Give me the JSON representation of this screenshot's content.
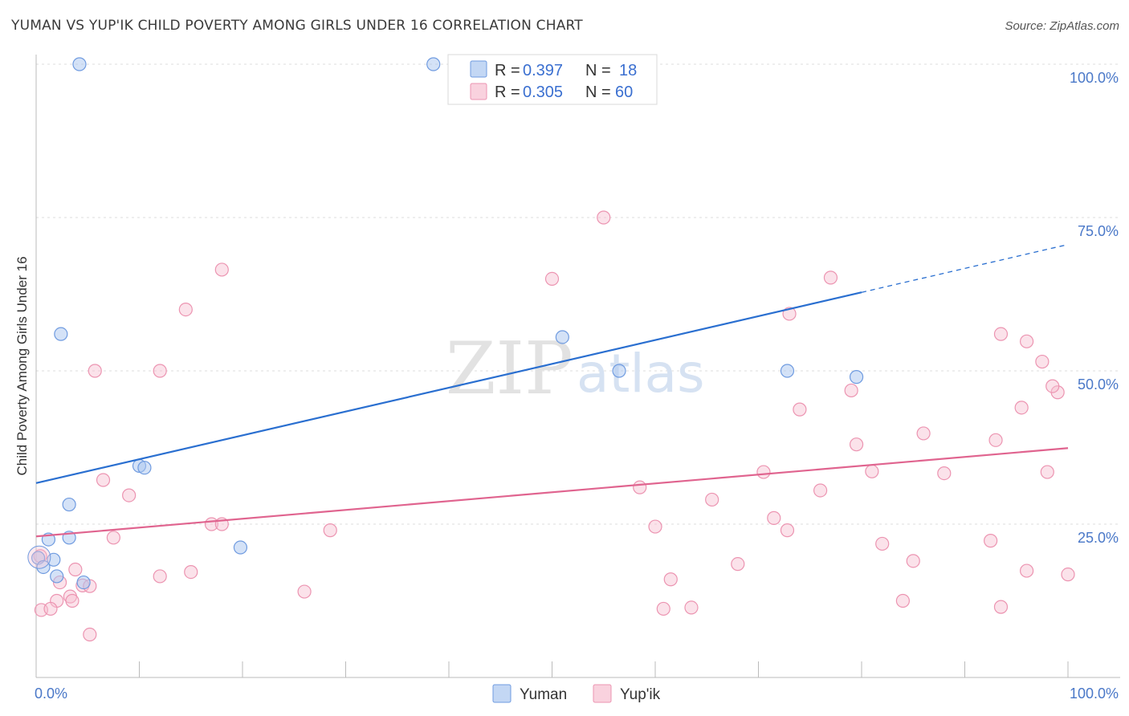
{
  "title": "YUMAN VS YUP'IK CHILD POVERTY AMONG GIRLS UNDER 16 CORRELATION CHART",
  "source": "Source: ZipAtlas.com",
  "watermark": {
    "zip": "ZIP",
    "atlas": "atlas"
  },
  "colors": {
    "yuman_fill": "#a9c6ef",
    "yuman_stroke": "#6f9be0",
    "yuman_line": "#2a6fd0",
    "yupik_fill": "#f6bfd0",
    "yupik_stroke": "#ec94b1",
    "yupik_line": "#e0648f",
    "grid": "#dddddd",
    "tick_text": "#4a78c8"
  },
  "legend": {
    "yuman": {
      "r_label": "R = ",
      "r_value": "0.397",
      "n_label": "N = ",
      "n_value": "18"
    },
    "yupik": {
      "r_label": "R = ",
      "r_value": "0.305",
      "n_label": "N = ",
      "n_value": "60"
    }
  },
  "bottom_legend": {
    "yuman": "Yuman",
    "yupik": "Yup'ik"
  },
  "chart_data": {
    "type": "scatter",
    "title": "YUMAN VS YUP'IK CHILD POVERTY AMONG GIRLS UNDER 16 CORRELATION CHART",
    "xlabel": "",
    "ylabel": "Child Poverty Among Girls Under 16",
    "xlim": [
      0,
      100
    ],
    "ylim": [
      0,
      100
    ],
    "x_tick_labels": [
      "0.0%",
      "100.0%"
    ],
    "y_tick_labels": [
      "100.0%",
      "75.0%",
      "50.0%",
      "25.0%"
    ],
    "y_tick_values": [
      100,
      75,
      50,
      25
    ],
    "grid": true,
    "series": [
      {
        "name": "Yuman",
        "R": 0.397,
        "N": 18,
        "trend": {
          "x0": 0,
          "y0": 31.7,
          "x1": 80,
          "y1": 62.8,
          "dash_x1": 100,
          "dash_y1": 70.6
        },
        "points": [
          [
            4.2,
            100
          ],
          [
            38.5,
            100
          ],
          [
            2.4,
            56.0
          ],
          [
            51.0,
            55.5
          ],
          [
            56.5,
            50.0
          ],
          [
            72.8,
            50.0
          ],
          [
            79.5,
            49.0
          ],
          [
            10.0,
            34.5
          ],
          [
            10.5,
            34.2
          ],
          [
            3.2,
            28.2
          ],
          [
            19.8,
            21.2
          ],
          [
            1.2,
            22.5
          ],
          [
            3.2,
            22.8
          ],
          [
            1.7,
            19.2
          ],
          [
            0.2,
            19.5
          ],
          [
            0.7,
            18.0
          ],
          [
            2.0,
            16.5
          ],
          [
            4.6,
            15.5
          ]
        ]
      },
      {
        "name": "Yup'ik",
        "R": 0.305,
        "N": 60,
        "trend": {
          "x0": 0,
          "y0": 23.0,
          "x1": 100,
          "y1": 37.4
        },
        "points": [
          [
            55.0,
            75.0
          ],
          [
            18.0,
            66.5
          ],
          [
            50.0,
            65.0
          ],
          [
            77.0,
            65.2
          ],
          [
            14.5,
            60.0
          ],
          [
            73.0,
            59.3
          ],
          [
            5.7,
            50.0
          ],
          [
            12.0,
            50.0
          ],
          [
            93.5,
            56.0
          ],
          [
            96.0,
            54.8
          ],
          [
            97.5,
            51.5
          ],
          [
            79.0,
            46.8
          ],
          [
            95.5,
            44.0
          ],
          [
            99.0,
            46.5
          ],
          [
            74.0,
            43.7
          ],
          [
            98.5,
            47.5
          ],
          [
            79.5,
            38.0
          ],
          [
            86.0,
            39.8
          ],
          [
            93.0,
            38.7
          ],
          [
            70.5,
            33.5
          ],
          [
            81.0,
            33.6
          ],
          [
            88.0,
            33.3
          ],
          [
            98.0,
            33.5
          ],
          [
            6.5,
            32.2
          ],
          [
            9.0,
            29.7
          ],
          [
            58.5,
            31.0
          ],
          [
            76.0,
            30.5
          ],
          [
            65.5,
            29.0
          ],
          [
            17.0,
            25.0
          ],
          [
            18.0,
            25.0
          ],
          [
            28.5,
            24.0
          ],
          [
            60.0,
            24.6
          ],
          [
            71.5,
            26.0
          ],
          [
            72.8,
            24.0
          ],
          [
            7.5,
            22.8
          ],
          [
            82.0,
            21.8
          ],
          [
            92.5,
            22.3
          ],
          [
            3.8,
            17.6
          ],
          [
            12.0,
            16.5
          ],
          [
            15.0,
            17.2
          ],
          [
            68.0,
            18.5
          ],
          [
            85.0,
            19.0
          ],
          [
            96.0,
            17.4
          ],
          [
            100.0,
            16.8
          ],
          [
            2.3,
            15.5
          ],
          [
            4.5,
            15.0
          ],
          [
            5.2,
            14.9
          ],
          [
            26.0,
            14.0
          ],
          [
            61.5,
            16.0
          ],
          [
            2.0,
            12.5
          ],
          [
            3.3,
            13.2
          ],
          [
            3.5,
            12.5
          ],
          [
            84.0,
            12.5
          ],
          [
            0.5,
            11.0
          ],
          [
            1.4,
            11.2
          ],
          [
            60.8,
            11.2
          ],
          [
            63.5,
            11.4
          ],
          [
            93.5,
            11.5
          ],
          [
            5.2,
            7.0
          ],
          [
            0.4,
            19.8
          ]
        ]
      }
    ]
  }
}
